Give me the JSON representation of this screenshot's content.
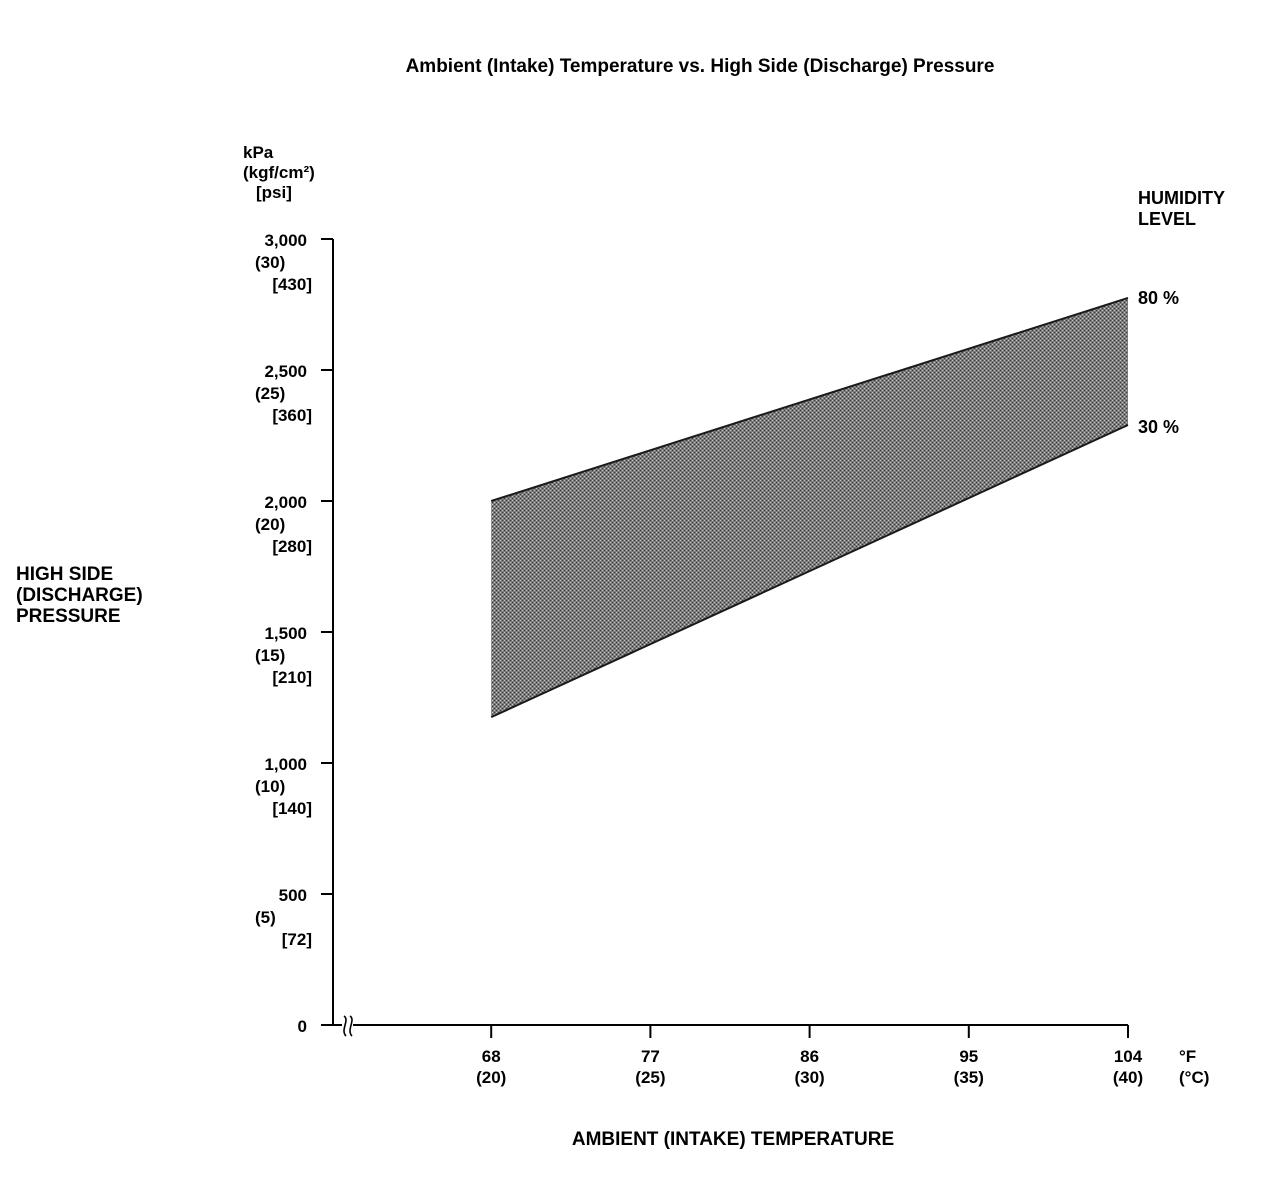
{
  "chart_data": {
    "type": "area",
    "title": "Ambient (Intake) Temperature vs. High Side (Discharge) Pressure",
    "xlabel": "AMBIENT (INTAKE) TEMPERATURE",
    "ylabel": [
      "HIGH SIDE",
      "(DISCHARGE)",
      "PRESSURE"
    ],
    "y_units": [
      "kPa",
      "(kgf/cm²)",
      "[psi]"
    ],
    "x_units": [
      "°F",
      "(°C)"
    ],
    "ylim": [
      0,
      3000
    ],
    "xlim": [
      59,
      104
    ],
    "axis_break": "≈",
    "y_ticks": [
      {
        "value": 0,
        "labels": [
          "0"
        ]
      },
      {
        "value": 500,
        "labels": [
          "500",
          "(5)",
          "[72]"
        ]
      },
      {
        "value": 1000,
        "labels": [
          "1,000",
          "(10)",
          "[140]"
        ]
      },
      {
        "value": 1500,
        "labels": [
          "1,500",
          "(15)",
          "[210]"
        ]
      },
      {
        "value": 2000,
        "labels": [
          "2,000",
          "(20)",
          "[280]"
        ]
      },
      {
        "value": 2500,
        "labels": [
          "2,500",
          "(25)",
          "[360]"
        ]
      },
      {
        "value": 3000,
        "labels": [
          "3,000",
          "(30)",
          "[430]"
        ]
      }
    ],
    "x_ticks": [
      {
        "value": 68,
        "labels": [
          "68",
          "(20)"
        ]
      },
      {
        "value": 77,
        "labels": [
          "77",
          "(25)"
        ]
      },
      {
        "value": 86,
        "labels": [
          "86",
          "(30)"
        ]
      },
      {
        "value": 95,
        "labels": [
          "95",
          "(35)"
        ]
      },
      {
        "value": 104,
        "labels": [
          "104",
          "(40)"
        ]
      }
    ],
    "legend_title": [
      "HUMIDITY",
      "LEVEL"
    ],
    "band": {
      "x": [
        68,
        104
      ],
      "upper": {
        "label": "80 %",
        "values": [
          2000,
          2775
        ]
      },
      "lower": {
        "label": "30 %",
        "values": [
          1175,
          2290
        ]
      },
      "fill": "#6e6e6e"
    },
    "grid": false
  }
}
